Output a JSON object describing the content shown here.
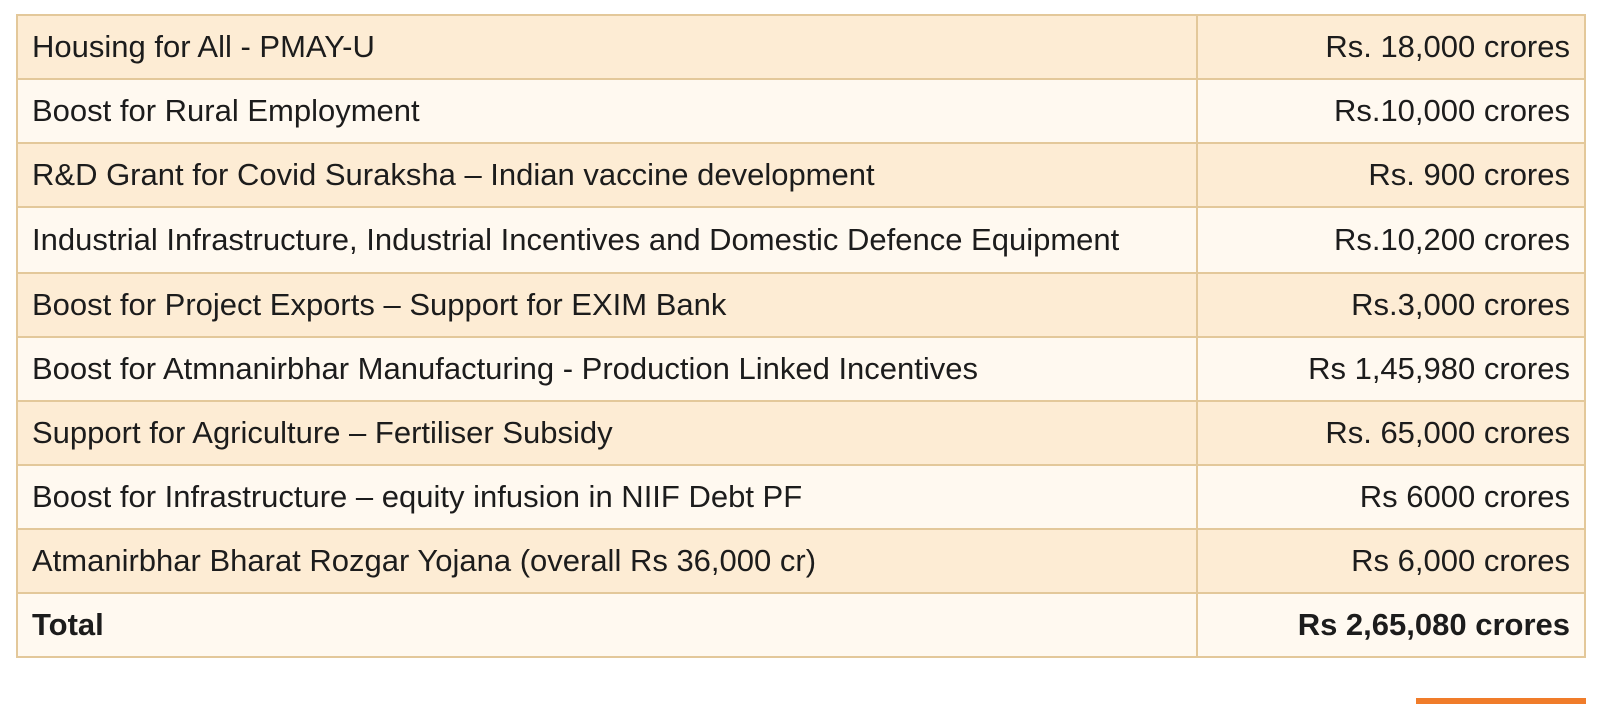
{
  "table": {
    "rows": [
      {
        "label": "Housing for All - PMAY-U",
        "amount": "Rs. 18,000 crores"
      },
      {
        "label": "Boost for Rural Employment",
        "amount": "Rs.10,000 crores"
      },
      {
        "label": "R&D Grant for Covid Suraksha – Indian vaccine development",
        "amount": "Rs. 900 crores"
      },
      {
        "label": "Industrial Infrastructure, Industrial Incentives and Domestic Defence Equipment",
        "amount": "Rs.10,200 crores"
      },
      {
        "label": "Boost for Project Exports – Support for EXIM Bank",
        "amount": "Rs.3,000 crores"
      },
      {
        "label": "Boost for Atmnanirbhar Manufacturing - Production Linked Incentives",
        "amount": "Rs 1,45,980 crores"
      },
      {
        "label": "Support for Agriculture – Fertiliser Subsidy",
        "amount": "Rs. 65,000 crores"
      },
      {
        "label": "Boost for Infrastructure – equity infusion in NIIF Debt PF",
        "amount": "Rs 6000 crores"
      },
      {
        "label": "Atmanirbhar Bharat Rozgar Yojana (overall Rs 36,000 cr)",
        "amount": "Rs 6,000 crores"
      }
    ],
    "total": {
      "label": "Total",
      "amount": "Rs 2,65,080 crores"
    }
  },
  "colors": {
    "row_shaded": "#fdecd4",
    "row_light": "#fff9f0",
    "border": "#e3c89a",
    "accent": "#f07c2a"
  }
}
